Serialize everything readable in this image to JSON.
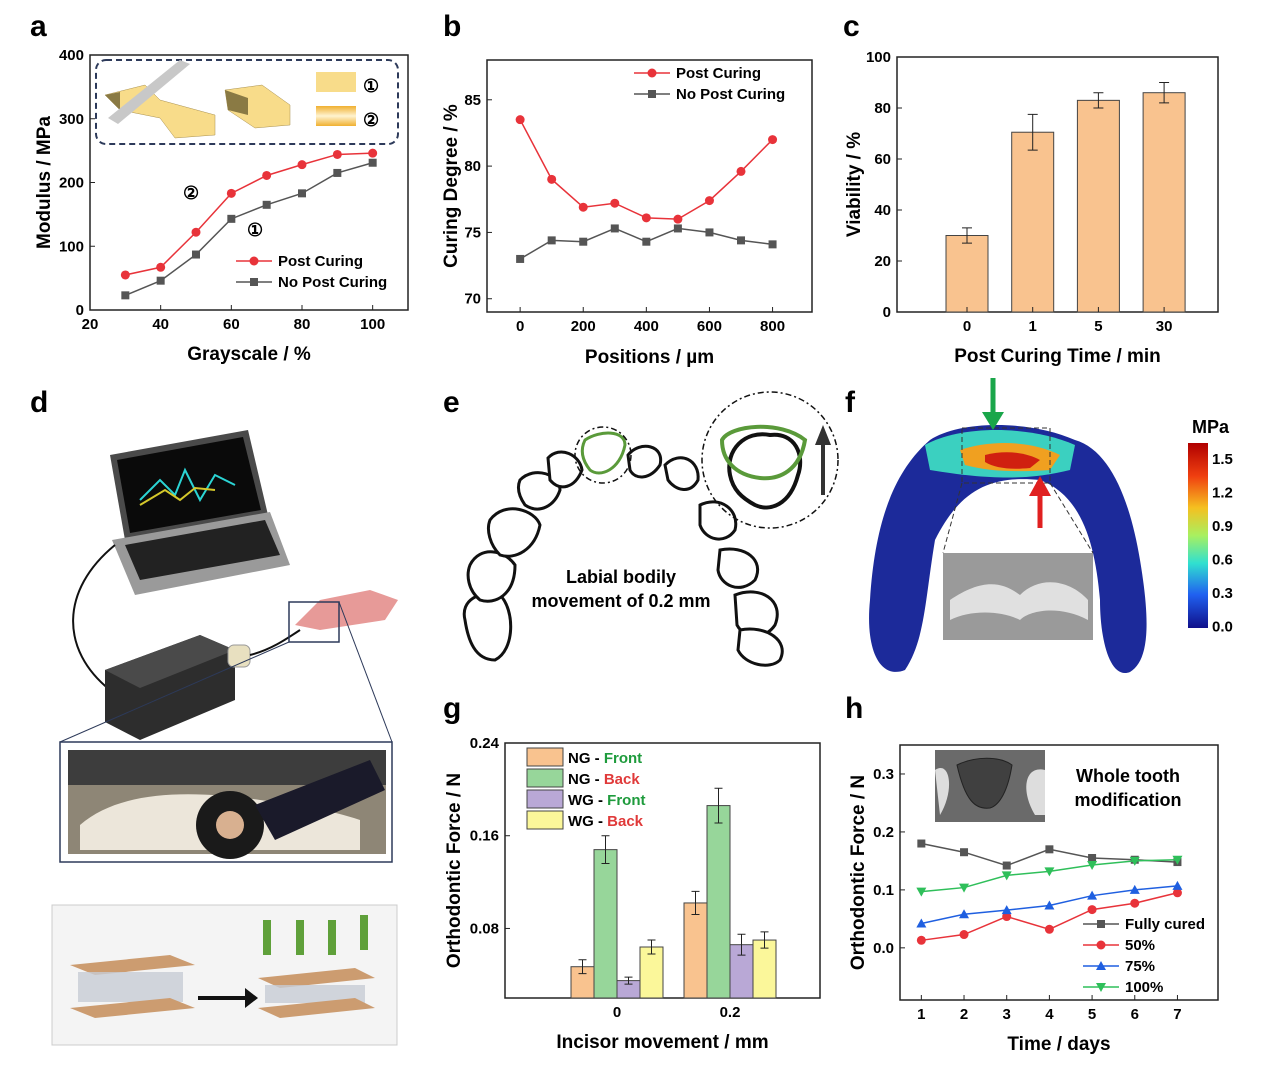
{
  "panel_labels": [
    "a",
    "b",
    "c",
    "d",
    "e",
    "f",
    "g",
    "h"
  ],
  "colors": {
    "post": "#e8333a",
    "nopost": "#555555",
    "orange": "#f9c38f",
    "green": "#97d69a",
    "purple": "#b9a8d6",
    "yellow": "#fbf79a",
    "blue": "#1f5fe0",
    "green_line": "#2fbf5a",
    "front_text": "#1e9b3c",
    "back_text": "#e03a3a"
  },
  "annotations": {
    "a_inset_1": "①",
    "a_inset_2": "②",
    "a_curve_1": "①",
    "a_curve_2": "②",
    "e_text_line1": "Labial bodily",
    "e_text_line2": "movement of 0.2 mm",
    "f_unit": "MPa",
    "f_colorbar_ticks": [
      "1.5",
      "1.2",
      "0.9",
      "0.6",
      "0.3",
      "0.0"
    ],
    "h_inset_line1": "Whole tooth",
    "h_inset_line2": "modification"
  },
  "chart_data": [
    {
      "panel": "a",
      "type": "line",
      "title": "",
      "xlabel": "Grayscale / %",
      "ylabel": "Modulus / MPa",
      "xlim": [
        20,
        110
      ],
      "ylim": [
        0,
        400
      ],
      "xticks": [
        "20",
        "40",
        "60",
        "80",
        "100"
      ],
      "yticks": [
        "0",
        "100",
        "200",
        "300",
        "400"
      ],
      "x": [
        30,
        40,
        50,
        60,
        70,
        80,
        90,
        100
      ],
      "series": [
        {
          "name": "Post Curing",
          "values": [
            55,
            67,
            122,
            183,
            211,
            228,
            244,
            246
          ]
        },
        {
          "name": "No Post Curing",
          "values": [
            23,
            46,
            87,
            143,
            165,
            183,
            215,
            231
          ]
        }
      ],
      "legend": "bottom-right"
    },
    {
      "panel": "b",
      "type": "line",
      "title": "",
      "xlabel": "Positions / µm",
      "ylabel": "Curing Degree / %",
      "xlim": [
        -105,
        925
      ],
      "ylim": [
        69,
        88
      ],
      "xticks": [
        "0",
        "200",
        "400",
        "600",
        "800"
      ],
      "yticks": [
        "70",
        "75",
        "80",
        "85"
      ],
      "x": [
        0,
        100,
        200,
        300,
        400,
        500,
        600,
        700,
        800
      ],
      "series": [
        {
          "name": "Post Curing",
          "values": [
            83.5,
            79,
            76.9,
            77.2,
            76.1,
            76,
            77.4,
            79.6,
            82
          ]
        },
        {
          "name": "No Post Curing",
          "values": [
            73,
            74.4,
            74.3,
            75.3,
            74.3,
            75.3,
            75,
            74.4,
            74.1
          ]
        }
      ],
      "legend": "top-right"
    },
    {
      "panel": "c",
      "type": "bar",
      "title": "",
      "xlabel": "Post Curing Time / min",
      "ylabel": "Viability / %",
      "ylim": [
        0,
        100
      ],
      "yticks": [
        "0",
        "20",
        "40",
        "60",
        "80",
        "100"
      ],
      "categories": [
        "0",
        "1",
        "5",
        "30"
      ],
      "values": [
        30,
        70.5,
        83,
        86
      ],
      "errors": [
        3,
        7,
        3,
        4
      ]
    },
    {
      "panel": "g",
      "type": "bar",
      "title": "",
      "xlabel": "Incisor movement / mm",
      "ylabel": "Orthodontic Force / N",
      "ylim": [
        0.02,
        0.24
      ],
      "yticks": [
        "0.08",
        "0.16",
        "0.24"
      ],
      "categories": [
        "0",
        "0.2"
      ],
      "series": [
        {
          "group": "NG",
          "side": "Front",
          "values": [
            0.047,
            0.102
          ],
          "errors": [
            0.006,
            0.01
          ]
        },
        {
          "group": "NG",
          "side": "Back",
          "values": [
            0.148,
            0.186
          ],
          "errors": [
            0.012,
            0.015
          ]
        },
        {
          "group": "WG",
          "side": "Front",
          "values": [
            0.035,
            0.066
          ],
          "errors": [
            0.003,
            0.009
          ]
        },
        {
          "group": "WG",
          "side": "Back",
          "values": [
            0.064,
            0.07
          ],
          "errors": [
            0.006,
            0.007
          ]
        }
      ],
      "legend": "top-left"
    },
    {
      "panel": "h",
      "type": "line",
      "title": "",
      "xlabel": "Time / days",
      "ylabel": "Orthodontic Force / N",
      "xlim": [
        0.5,
        7.95
      ],
      "ylim": [
        -0.09,
        0.35
      ],
      "xticks": [
        "1",
        "2",
        "3",
        "4",
        "5",
        "6",
        "7"
      ],
      "yticks": [
        "0.0",
        "0.1",
        "0.2",
        "0.3"
      ],
      "x": [
        1,
        2,
        3,
        4,
        5,
        6,
        7
      ],
      "series": [
        {
          "name": "Fully cured",
          "values": [
            0.18,
            0.165,
            0.142,
            0.17,
            0.155,
            0.152,
            0.148
          ]
        },
        {
          "name": "50%",
          "values": [
            0.013,
            0.023,
            0.054,
            0.032,
            0.066,
            0.077,
            0.095
          ]
        },
        {
          "name": "75%",
          "values": [
            0.042,
            0.058,
            0.065,
            0.073,
            0.09,
            0.1,
            0.107
          ]
        },
        {
          "name": "100%",
          "values": [
            0.097,
            0.104,
            0.125,
            0.132,
            0.143,
            0.15,
            0.152
          ]
        }
      ],
      "legend": "bottom-right"
    }
  ]
}
